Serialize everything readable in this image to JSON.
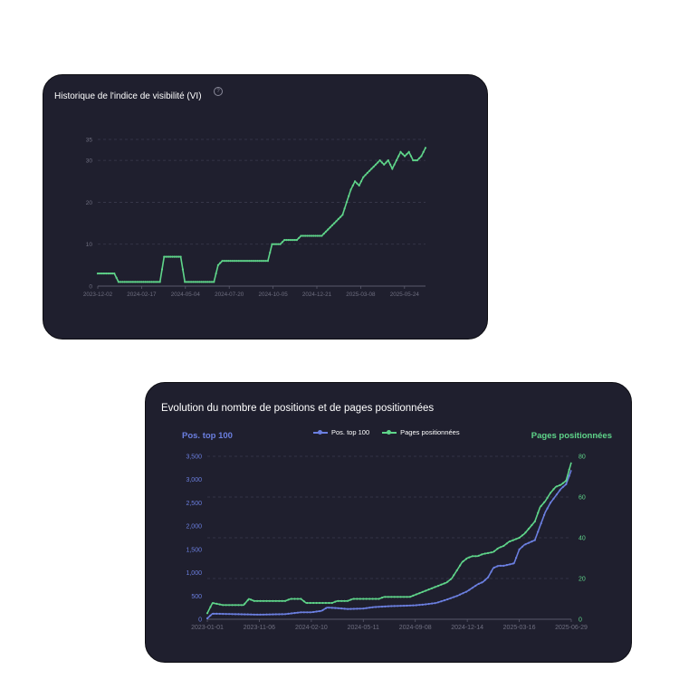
{
  "colors": {
    "green": "#5fd58a",
    "blue": "#6b7fe0",
    "card_bg": "#1f1f2e",
    "grid": "#3b3b4d",
    "tick": "#6f6f80"
  },
  "chart_data": [
    {
      "type": "line",
      "title": "Historique de l'indice de visibilité (VI)",
      "help_icon": "question-circle-icon",
      "xlabel": "",
      "ylabel": "",
      "x_ticks": [
        "2023-12-02",
        "2024-02-17",
        "2024-05-04",
        "2024-07-20",
        "2024-10-05",
        "2024-12-21",
        "2025-03-08",
        "2025-05-24"
      ],
      "y_ticks": [
        0,
        10,
        20,
        30,
        35
      ],
      "ylim": [
        0,
        35
      ],
      "xlim": [
        0,
        79
      ],
      "series": [
        {
          "name": "VI",
          "color": "#5fd58a",
          "points": [
            [
              0,
              3
            ],
            [
              4,
              3
            ],
            [
              5,
              1
            ],
            [
              15,
              1
            ],
            [
              16,
              7
            ],
            [
              20,
              7
            ],
            [
              21,
              1
            ],
            [
              28,
              1
            ],
            [
              29,
              5
            ],
            [
              30,
              6
            ],
            [
              41,
              6
            ],
            [
              42,
              10
            ],
            [
              44,
              10
            ],
            [
              45,
              11
            ],
            [
              48,
              11
            ],
            [
              49,
              12
            ],
            [
              54,
              12
            ],
            [
              55,
              13
            ],
            [
              56,
              14
            ],
            [
              57,
              15
            ],
            [
              58,
              16
            ],
            [
              59,
              17
            ],
            [
              60,
              20
            ],
            [
              61,
              23
            ],
            [
              62,
              25
            ],
            [
              63,
              24
            ],
            [
              64,
              26
            ],
            [
              65,
              27
            ],
            [
              66,
              28
            ],
            [
              67,
              29
            ],
            [
              68,
              30
            ],
            [
              69,
              29
            ],
            [
              70,
              30
            ],
            [
              71,
              28
            ],
            [
              72,
              30
            ],
            [
              73,
              32
            ],
            [
              74,
              31
            ],
            [
              75,
              32
            ],
            [
              76,
              30
            ],
            [
              77,
              30
            ],
            [
              78,
              31
            ],
            [
              79,
              33
            ]
          ]
        }
      ]
    },
    {
      "type": "line",
      "title": "Evolution du nombre de positions et de pages positionnées",
      "legend": [
        "Pos. top 100",
        "Pages positionnées"
      ],
      "y_left_title": "Pos. top 100",
      "y_right_title": "Pages positionnées",
      "x_ticks": [
        "2023-01-01",
        "2023-11-06",
        "2024-02-10",
        "2024-05-11",
        "2024-09-08",
        "2024-12-14",
        "2025-03-16",
        "2025-06-29"
      ],
      "y_left_ticks": [
        "0",
        "500",
        "1,000",
        "1,500",
        "2,000",
        "2,500",
        "3,000",
        "3,500"
      ],
      "y_right_ticks": [
        "0",
        "20",
        "40",
        "60",
        "80"
      ],
      "ylim_left": [
        0,
        3500
      ],
      "ylim_right": [
        0,
        80
      ],
      "xlim": [
        0,
        70
      ],
      "series": [
        {
          "name": "Pos. top 100",
          "axis": "left",
          "color": "#6b7fe0",
          "points": [
            [
              0,
              20
            ],
            [
              1,
              120
            ],
            [
              5,
              110
            ],
            [
              10,
              100
            ],
            [
              15,
              110
            ],
            [
              18,
              150
            ],
            [
              20,
              150
            ],
            [
              22,
              180
            ],
            [
              23,
              250
            ],
            [
              25,
              240
            ],
            [
              27,
              220
            ],
            [
              30,
              230
            ],
            [
              32,
              260
            ],
            [
              35,
              280
            ],
            [
              38,
              290
            ],
            [
              40,
              300
            ],
            [
              42,
              320
            ],
            [
              44,
              350
            ],
            [
              46,
              420
            ],
            [
              48,
              500
            ],
            [
              50,
              600
            ],
            [
              52,
              750
            ],
            [
              53,
              800
            ],
            [
              54,
              900
            ],
            [
              55,
              1100
            ],
            [
              56,
              1150
            ],
            [
              57,
              1150
            ],
            [
              59,
              1200
            ],
            [
              60,
              1500
            ],
            [
              61,
              1600
            ],
            [
              62,
              1650
            ],
            [
              63,
              1700
            ],
            [
              64,
              2000
            ],
            [
              65,
              2300
            ],
            [
              66,
              2500
            ],
            [
              67,
              2650
            ],
            [
              68,
              2800
            ],
            [
              69,
              2900
            ],
            [
              70,
              3200
            ]
          ]
        },
        {
          "name": "Pages positionnées",
          "axis": "right",
          "color": "#5fd58a",
          "points": [
            [
              0,
              3
            ],
            [
              1,
              8
            ],
            [
              3,
              7
            ],
            [
              7,
              7
            ],
            [
              8,
              10
            ],
            [
              9,
              9
            ],
            [
              15,
              9
            ],
            [
              16,
              10
            ],
            [
              18,
              10
            ],
            [
              19,
              8
            ],
            [
              24,
              8
            ],
            [
              25,
              9
            ],
            [
              27,
              9
            ],
            [
              28,
              10
            ],
            [
              33,
              10
            ],
            [
              34,
              11
            ],
            [
              39,
              11
            ],
            [
              40,
              12
            ],
            [
              42,
              14
            ],
            [
              44,
              16
            ],
            [
              45,
              17
            ],
            [
              46,
              18
            ],
            [
              47,
              20
            ],
            [
              48,
              24
            ],
            [
              49,
              28
            ],
            [
              50,
              30
            ],
            [
              51,
              31
            ],
            [
              52,
              31
            ],
            [
              53,
              32
            ],
            [
              55,
              33
            ],
            [
              56,
              35
            ],
            [
              57,
              36
            ],
            [
              58,
              38
            ],
            [
              59,
              39
            ],
            [
              60,
              40
            ],
            [
              61,
              42
            ],
            [
              62,
              45
            ],
            [
              63,
              48
            ],
            [
              64,
              55
            ],
            [
              65,
              58
            ],
            [
              66,
              62
            ],
            [
              67,
              65
            ],
            [
              68,
              66
            ],
            [
              69,
              68
            ],
            [
              70,
              77
            ]
          ]
        }
      ]
    }
  ]
}
